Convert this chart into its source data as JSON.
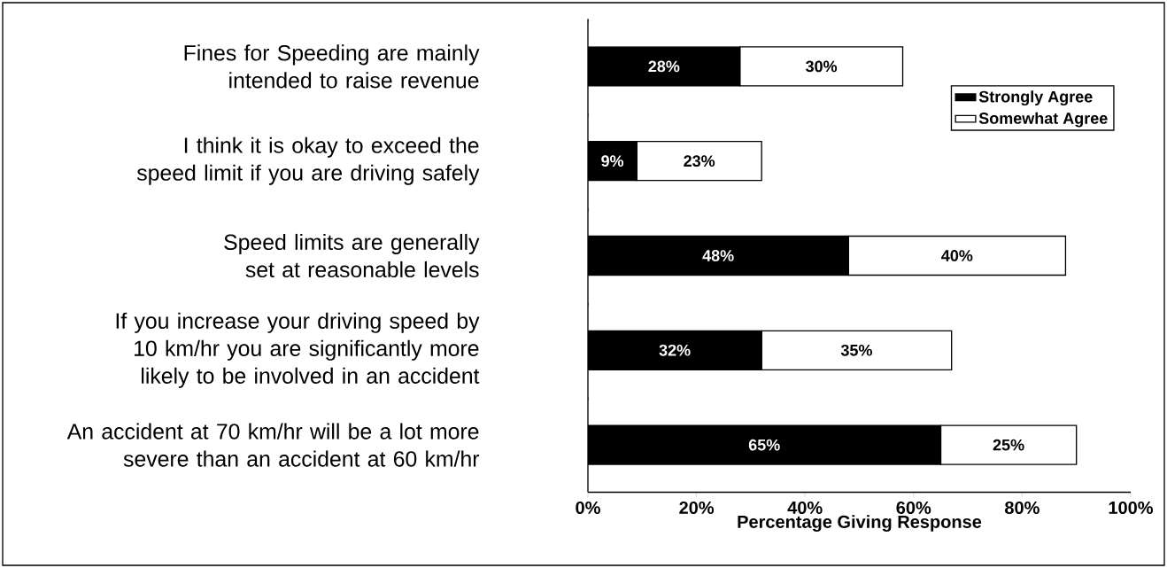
{
  "chart_data": {
    "type": "bar",
    "orientation": "horizontal",
    "stacked": true,
    "xlabel": "Percentage Giving Response",
    "categories": [
      "Fines for Speeding are mainly intended to raise revenue",
      "I think it is okay to exceed the speed limit if you are driving safely",
      "Speed limits are generally set at reasonable levels",
      "If you increase your driving speed by 10 km/hr you are significantly more likely to be involved in an accident",
      "An accident at 70 km/hr will be a lot more severe than an accident at 60 km/hr"
    ],
    "series": [
      {
        "name": "Strongly Agree",
        "color": "#000000",
        "values": [
          28,
          9,
          48,
          32,
          65
        ],
        "value_labels": [
          "28%",
          "9%",
          "48%",
          "32%",
          "65%"
        ]
      },
      {
        "name": "Somewhat Agree",
        "color": "#ffffff",
        "values": [
          30,
          23,
          40,
          35,
          25
        ],
        "value_labels": [
          "30%",
          "23%",
          "40%",
          "35%",
          "25%"
        ]
      }
    ],
    "xlim": [
      0,
      100
    ],
    "xticks": [
      {
        "value": 0,
        "label": "0%"
      },
      {
        "value": 20,
        "label": "20%"
      },
      {
        "value": 40,
        "label": "40%"
      },
      {
        "value": 60,
        "label": "60%"
      },
      {
        "value": 80,
        "label": "80%"
      },
      {
        "value": 100,
        "label": "100%"
      }
    ],
    "legend": "top right",
    "grid": false
  }
}
